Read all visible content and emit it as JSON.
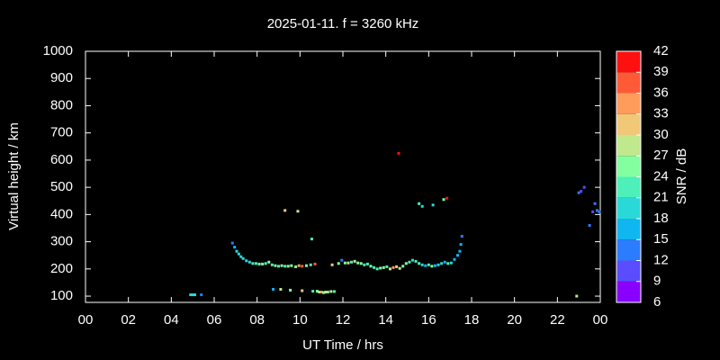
{
  "chart_data": {
    "type": "scatter",
    "title": "2025-01-11. f = 3260 kHz",
    "xlabel": "UT Time / hrs",
    "ylabel": "Virtual height / km",
    "xlim": [
      0,
      24
    ],
    "xticks": [
      {
        "value": 0,
        "label": "00"
      },
      {
        "value": 2,
        "label": "02"
      },
      {
        "value": 4,
        "label": "04"
      },
      {
        "value": 6,
        "label": "06"
      },
      {
        "value": 8,
        "label": "08"
      },
      10,
      12,
      14,
      16,
      18,
      20,
      22,
      {
        "value": 24,
        "label": "00"
      }
    ],
    "ylim": [
      77,
      1000
    ],
    "yticks": [
      100,
      200,
      300,
      400,
      500,
      600,
      700,
      800,
      900,
      1000
    ],
    "x": [
      4.9,
      5.0,
      5.1,
      5.4,
      6.85,
      6.95,
      7.05,
      7.15,
      7.25,
      7.35,
      7.5,
      7.65,
      7.8,
      7.95,
      8.1,
      8.25,
      8.4,
      8.55,
      8.7,
      8.85,
      9.0,
      9.15,
      9.3,
      9.45,
      9.6,
      9.8,
      9.95,
      10.1,
      10.3,
      10.5,
      10.7,
      9.3,
      9.9,
      10.55,
      8.75,
      9.1,
      9.55,
      10.1,
      10.6,
      10.8,
      10.9,
      11.0,
      11.1,
      11.2,
      11.3,
      11.45,
      11.6,
      11.5,
      11.8,
      11.95,
      12.1,
      12.25,
      12.4,
      12.55,
      12.7,
      12.85,
      13.0,
      13.15,
      13.3,
      13.45,
      13.6,
      13.75,
      13.9,
      14.05,
      14.2,
      14.35,
      14.5,
      14.65,
      14.8,
      14.95,
      15.1,
      15.25,
      15.4,
      15.55,
      15.7,
      15.85,
      16.0,
      16.15,
      16.3,
      16.45,
      16.6,
      16.75,
      16.9,
      17.05,
      17.2,
      17.35,
      17.45,
      17.5,
      17.55,
      14.6,
      15.55,
      15.7,
      16.2,
      16.7,
      16.85,
      22.9,
      23.0,
      23.1,
      23.25,
      23.5,
      23.65,
      23.75,
      23.85,
      23.95
    ],
    "values": [
      105,
      105,
      105,
      105,
      295,
      280,
      265,
      255,
      245,
      238,
      230,
      225,
      220,
      220,
      218,
      218,
      220,
      225,
      215,
      212,
      210,
      212,
      210,
      210,
      212,
      208,
      212,
      210,
      212,
      215,
      218,
      415,
      412,
      310,
      125,
      125,
      122,
      120,
      118,
      118,
      115,
      115,
      113,
      115,
      115,
      117,
      117,
      215,
      220,
      232,
      222,
      222,
      225,
      228,
      222,
      220,
      215,
      218,
      210,
      205,
      200,
      203,
      205,
      208,
      200,
      205,
      208,
      202,
      210,
      220,
      225,
      232,
      228,
      220,
      215,
      212,
      215,
      210,
      212,
      215,
      220,
      225,
      220,
      222,
      235,
      250,
      265,
      290,
      320,
      625,
      440,
      430,
      435,
      455,
      460,
      100,
      480,
      485,
      500,
      360,
      410,
      440,
      415,
      410
    ],
    "snr": [
      18,
      18,
      18,
      14,
      12,
      15,
      18,
      18,
      18,
      19,
      20,
      20,
      21,
      23,
      25,
      24,
      22,
      25,
      23,
      24,
      21,
      25,
      23,
      24,
      26,
      25,
      33,
      36,
      24,
      22,
      38,
      30,
      28,
      22,
      15,
      28,
      24,
      31,
      21,
      24,
      27,
      33,
      26,
      29,
      24,
      27,
      22,
      32,
      24,
      12,
      25,
      28,
      23,
      27,
      24,
      26,
      22,
      23,
      24,
      22,
      21,
      24,
      26,
      23,
      28,
      35,
      30,
      27,
      24,
      26,
      22,
      20,
      23,
      22,
      20,
      16,
      21,
      24,
      15,
      20,
      19,
      16,
      22,
      20,
      16,
      17,
      16,
      16,
      14,
      40,
      21,
      18,
      20,
      24,
      40,
      27,
      12,
      11,
      11,
      12,
      11,
      14,
      14,
      13
    ],
    "colorbar": {
      "label": "SNR / dB",
      "ticks": [
        6,
        9,
        12,
        15,
        18,
        21,
        24,
        27,
        30,
        33,
        36,
        39,
        42
      ],
      "colors": [
        "#8a00ff",
        "#5a4cff",
        "#2c7cff",
        "#10b6f0",
        "#2ad8d8",
        "#4cf0b8",
        "#84ffa0",
        "#c0e88c",
        "#f0c878",
        "#ff9c5c",
        "#ff5a38",
        "#ff1010"
      ]
    }
  }
}
